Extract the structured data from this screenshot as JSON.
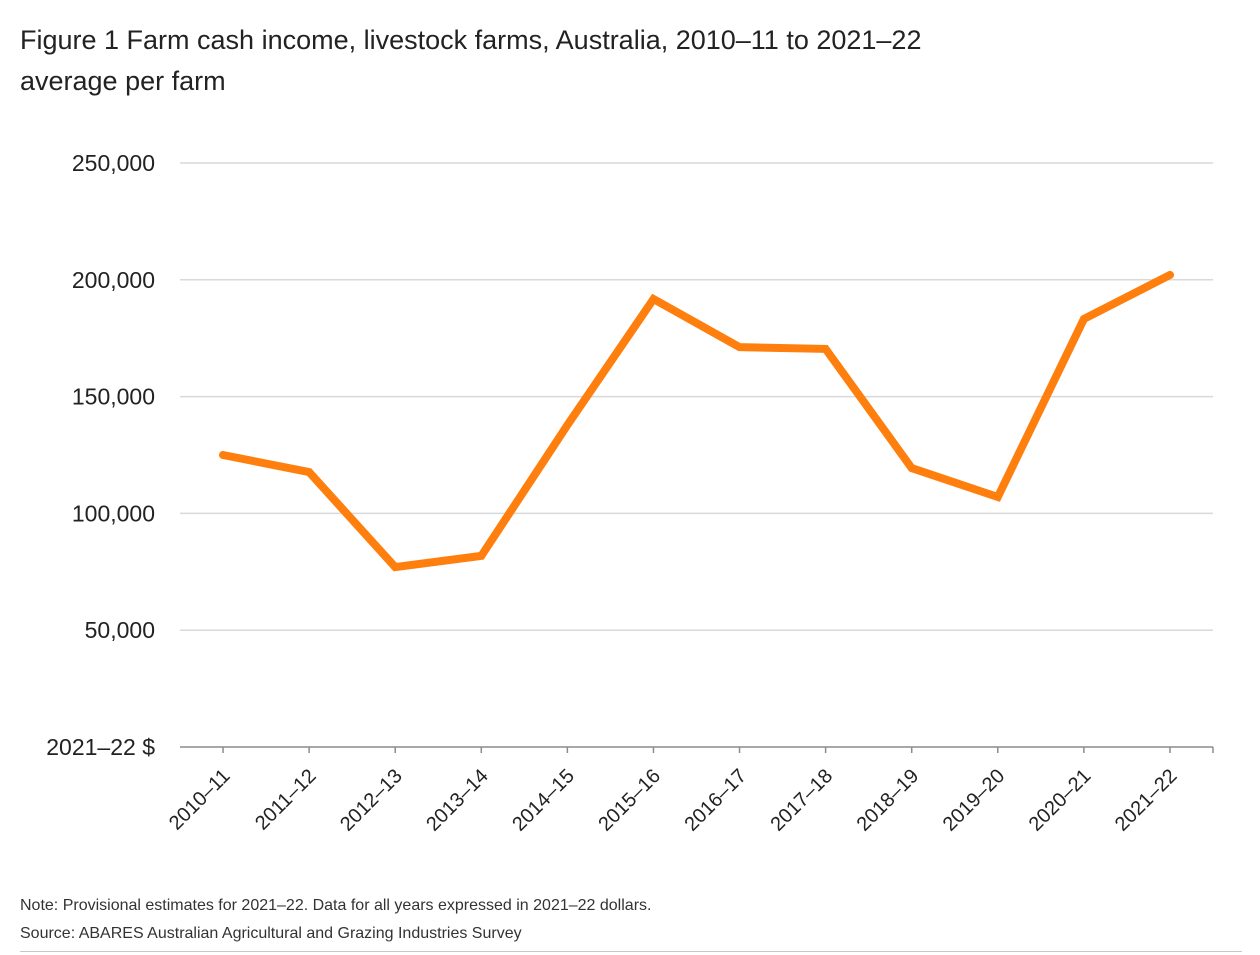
{
  "title": {
    "line1": "Figure 1 Farm cash income, livestock farms, Australia, 2010–11 to 2021–22",
    "line2": "average per farm"
  },
  "axis": {
    "y_unit_label": "2021–22 $",
    "y_ticks": [
      "250,000",
      "200,000",
      "150,000",
      "100,000",
      "50,000"
    ]
  },
  "footer": {
    "note": "Note: Provisional estimates for 2021–22. Data for all years expressed in 2021–22 dollars.",
    "source": "Source: ABARES Australian Agricultural and Grazing Industries Survey"
  },
  "colors": {
    "series": "#FF7F0E",
    "grid": "#d9d9d9",
    "axis": "#8c8c8c"
  },
  "chart_data": {
    "type": "line",
    "title": "Figure 1 Farm cash income, livestock farms, Australia, 2010–11 to 2021–22 average per farm",
    "xlabel": "",
    "ylabel": "2021–22 $",
    "ylim": [
      0,
      250000
    ],
    "yticks": [
      0,
      50000,
      100000,
      150000,
      200000,
      250000
    ],
    "grid": true,
    "legend": "none",
    "categories": [
      "2010–11",
      "2011–12",
      "2012–13",
      "2013–14",
      "2014–15",
      "2015–16",
      "2016–17",
      "2017–18",
      "2018–19",
      "2019–20",
      "2020–21",
      "2021–22"
    ],
    "series": [
      {
        "name": "Farm cash income",
        "color": "#FF7F0E",
        "values": [
          125000,
          117700,
          77000,
          81800,
          137800,
          191800,
          171200,
          170400,
          119400,
          107000,
          183200,
          202100
        ]
      }
    ],
    "annotations": [
      "Note: Provisional estimates for 2021–22. Data for all years expressed in 2021–22 dollars.",
      "Source: ABARES Australian Agricultural and Grazing Industries Survey"
    ]
  }
}
